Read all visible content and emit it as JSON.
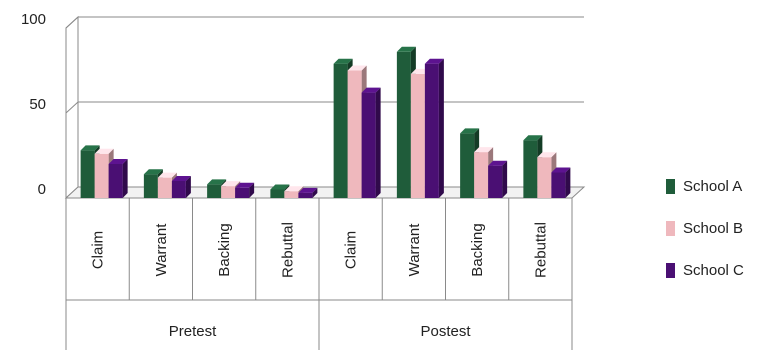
{
  "chart_data": {
    "type": "bar",
    "yticks": [
      "0",
      "50",
      "100"
    ],
    "ylim": [
      0,
      100
    ],
    "groups": [
      {
        "label": "Pretest",
        "categories": [
          "Claim",
          "Warrant",
          "Backing",
          "Rebuttal"
        ]
      },
      {
        "label": "Postest",
        "categories": [
          "Claim",
          "Warrant",
          "Backing",
          "Rebuttal"
        ]
      }
    ],
    "series": [
      {
        "name": "School A",
        "color": "#1f5c3a",
        "values": [
          28,
          14,
          8,
          5,
          79,
          86,
          38,
          34
        ]
      },
      {
        "name": "School B",
        "color": "#efb8bd",
        "values": [
          26,
          12,
          7,
          4,
          75,
          73,
          27,
          24
        ]
      },
      {
        "name": "School C",
        "color": "#4a0f73",
        "values": [
          20,
          10,
          6,
          3,
          62,
          79,
          19,
          15
        ]
      }
    ],
    "legend_position": "right",
    "grid": true
  }
}
